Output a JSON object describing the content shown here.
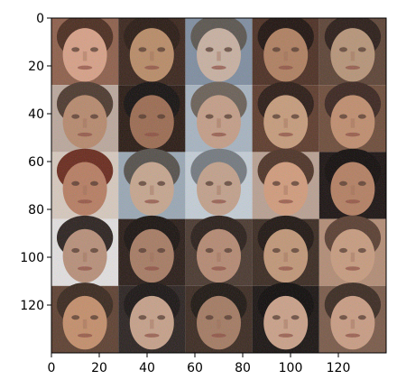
{
  "chart_data": {
    "type": "heatmap",
    "title": "",
    "xlabel": "",
    "ylabel": "",
    "xlim": [
      0,
      140
    ],
    "ylim": [
      140,
      0
    ],
    "x_ticks": [
      0,
      20,
      40,
      60,
      80,
      100,
      120
    ],
    "y_ticks": [
      0,
      20,
      40,
      60,
      80,
      100,
      120
    ],
    "grid_rows": 5,
    "grid_cols": 5,
    "tile_size": 28,
    "frame_color": "#000000",
    "background_color": "#ffffff",
    "tiles": [
      {
        "row": 0,
        "col": 0,
        "skin": "#d7a088",
        "bg": "#8e5f4c",
        "hair": "#4b2c20"
      },
      {
        "row": 0,
        "col": 1,
        "skin": "#b98b68",
        "bg": "#3b251d",
        "hair": "#2a1a14"
      },
      {
        "row": 0,
        "col": 2,
        "skin": "#c8b0a2",
        "bg": "#7f8da1",
        "hair": "#5b5550"
      },
      {
        "row": 0,
        "col": 3,
        "skin": "#b07f61",
        "bg": "#4d2f24",
        "hair": "#1f120f"
      },
      {
        "row": 0,
        "col": 4,
        "skin": "#b79479",
        "bg": "#5d4336",
        "hair": "#2b1c18"
      },
      {
        "row": 1,
        "col": 0,
        "skin": "#b7896e",
        "bg": "#bba79d",
        "hair": "#4d392f"
      },
      {
        "row": 1,
        "col": 1,
        "skin": "#9c6b52",
        "bg": "#2a1a14",
        "hair": "#151010"
      },
      {
        "row": 1,
        "col": 2,
        "skin": "#c49d88",
        "bg": "#a7b3c1",
        "hair": "#6b6058"
      },
      {
        "row": 1,
        "col": 3,
        "skin": "#c69b7c",
        "bg": "#5e3b2d",
        "hair": "#2c1b16"
      },
      {
        "row": 1,
        "col": 4,
        "skin": "#c08d6f",
        "bg": "#6e4c3b",
        "hair": "#3b2520"
      },
      {
        "row": 2,
        "col": 0,
        "skin": "#b77d63",
        "bg": "#d6c8be",
        "hair": "#6a2a1e"
      },
      {
        "row": 2,
        "col": 1,
        "skin": "#c6a58f",
        "bg": "#9aa7b5",
        "hair": "#55504c"
      },
      {
        "row": 2,
        "col": 2,
        "skin": "#c2a08c",
        "bg": "#c3ccd6",
        "hair": "#747980"
      },
      {
        "row": 2,
        "col": 3,
        "skin": "#d19b7d",
        "bg": "#b9a093",
        "hair": "#4e3328"
      },
      {
        "row": 2,
        "col": 4,
        "skin": "#b47f63",
        "bg": "#1b1212",
        "hair": "#120c0c"
      },
      {
        "row": 3,
        "col": 0,
        "skin": "#b88f7a",
        "bg": "#e2dfe0",
        "hair": "#2c2220"
      },
      {
        "row": 3,
        "col": 1,
        "skin": "#a77b64",
        "bg": "#2a1c18",
        "hair": "#1a1210"
      },
      {
        "row": 3,
        "col": 2,
        "skin": "#b58973",
        "bg": "#4a3830",
        "hair": "#2a1e1a"
      },
      {
        "row": 3,
        "col": 3,
        "skin": "#c19678",
        "bg": "#3b2a22",
        "hair": "#1f1512"
      },
      {
        "row": 3,
        "col": 4,
        "skin": "#c79b80",
        "bg": "#b38c76",
        "hair": "#5a3e32"
      },
      {
        "row": 4,
        "col": 0,
        "skin": "#c48e6c",
        "bg": "#5e4032",
        "hair": "#3a281f"
      },
      {
        "row": 4,
        "col": 1,
        "skin": "#c6a08a",
        "bg": "#2b2221",
        "hair": "#1a1414"
      },
      {
        "row": 4,
        "col": 2,
        "skin": "#a47a63",
        "bg": "#3c2a22",
        "hair": "#1e1612"
      },
      {
        "row": 4,
        "col": 3,
        "skin": "#caa089",
        "bg": "#1a1312",
        "hair": "#0f0b0b"
      },
      {
        "row": 4,
        "col": 4,
        "skin": "#c99c84",
        "bg": "#7a5a4a",
        "hair": "#3b2a22"
      }
    ]
  }
}
